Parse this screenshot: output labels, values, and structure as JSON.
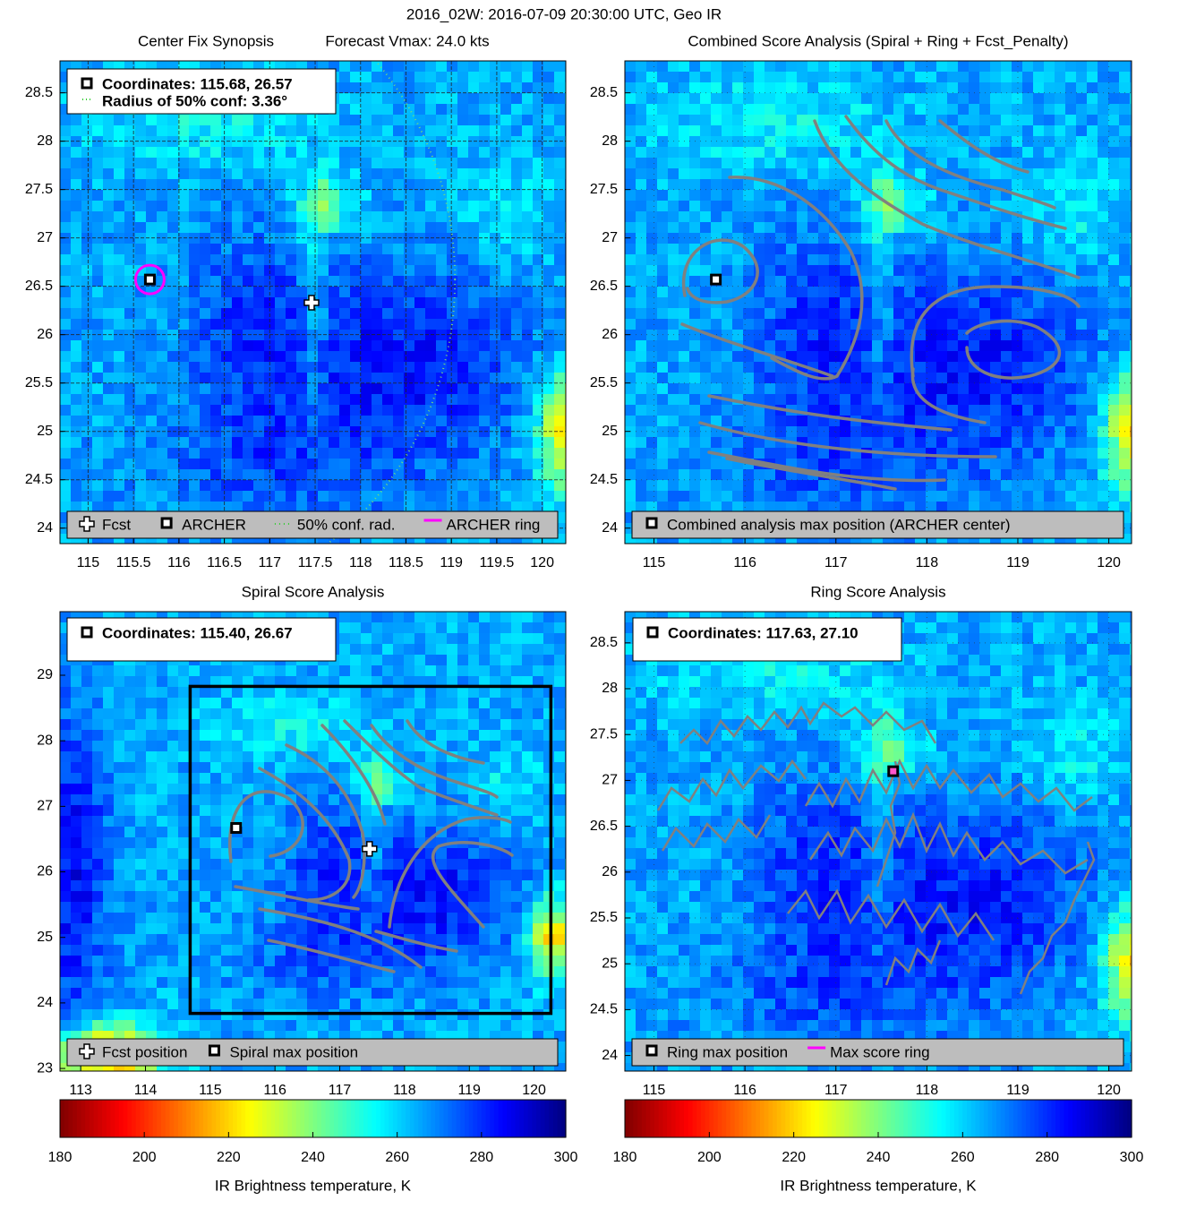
{
  "title": "2016_02W: 2016-07-09 20:30:00 UTC, Geo IR",
  "chart_data": [
    {
      "type": "scatter",
      "title": "Center Fix Synopsis",
      "subtitle": "Forecast Vmax: 24.0 kts",
      "xlim": [
        114.69,
        120.26
      ],
      "ylim": [
        23.84,
        28.83
      ],
      "xticks": [
        115,
        115.5,
        116,
        116.5,
        117,
        117.5,
        118,
        118.5,
        119,
        119.5,
        120
      ],
      "yticks": [
        24,
        24.5,
        25,
        25.5,
        26,
        26.5,
        27,
        27.5,
        28,
        28.5
      ],
      "grid": true,
      "info": [
        "Coordinates: 115.68, 26.57",
        "Radius of 50% conf: 3.36°"
      ],
      "points": [
        {
          "x": 115.68,
          "y": 26.57,
          "marker": "square-ring"
        },
        {
          "x": 117.46,
          "y": 26.33,
          "marker": "plus"
        }
      ],
      "conf_radius": 3.36,
      "legend": [
        {
          "label": "Fcst",
          "symbol": "plus"
        },
        {
          "label": "ARCHER",
          "symbol": "square"
        },
        {
          "label": "50% conf. rad.",
          "symbol": "dots"
        },
        {
          "label": "ARCHER ring",
          "symbol": "line"
        }
      ]
    },
    {
      "type": "scatter",
      "title": "Combined Score Analysis (Spiral + Ring + Fcst_Penalty)",
      "xlim": [
        114.68,
        120.25
      ],
      "ylim": [
        23.84,
        28.83
      ],
      "xticks": [
        115,
        116,
        117,
        118,
        119,
        120
      ],
      "yticks": [
        24,
        24.5,
        25,
        25.5,
        26,
        26.5,
        27,
        27.5,
        28,
        28.5
      ],
      "grid": true,
      "points": [
        {
          "x": 115.68,
          "y": 26.57,
          "marker": "square"
        }
      ],
      "legend": [
        {
          "label": "Combined analysis max position (ARCHER center)",
          "symbol": "square"
        }
      ]
    },
    {
      "type": "scatter",
      "title": "Spiral Score Analysis",
      "xlim": [
        112.68,
        120.49
      ],
      "ylim": [
        22.96,
        29.97
      ],
      "xticks": [
        113,
        114,
        115,
        116,
        117,
        118,
        119,
        120
      ],
      "yticks": [
        23,
        24,
        25,
        26,
        27,
        28,
        29
      ],
      "grid": false,
      "info": [
        "Coordinates: 115.40, 26.67"
      ],
      "points": [
        {
          "x": 115.4,
          "y": 26.67,
          "marker": "square"
        },
        {
          "x": 117.46,
          "y": 26.35,
          "marker": "plus"
        }
      ],
      "legend": [
        {
          "label": "Fcst position",
          "symbol": "plus"
        },
        {
          "label": "Spiral max position",
          "symbol": "square"
        }
      ]
    },
    {
      "type": "scatter",
      "title": "Ring Score Analysis",
      "xlim": [
        114.68,
        120.25
      ],
      "ylim": [
        23.83,
        28.84
      ],
      "xticks": [
        115,
        116,
        117,
        118,
        119,
        120
      ],
      "yticks": [
        24,
        24.5,
        25,
        25.5,
        26,
        26.5,
        27,
        27.5,
        28,
        28.5
      ],
      "grid": true,
      "info": [
        "Coordinates: 117.63, 27.10"
      ],
      "points": [
        {
          "x": 117.63,
          "y": 27.1,
          "marker": "square-pink"
        }
      ],
      "legend": [
        {
          "label": "Ring max position",
          "symbol": "square"
        },
        {
          "label": "Max score ring",
          "symbol": "line"
        }
      ]
    }
  ],
  "colorbars": [
    {
      "label": "IR Brightness temperature, K",
      "lim": [
        180,
        300
      ],
      "ticks": [
        180,
        200,
        220,
        240,
        260,
        280,
        300
      ]
    },
    {
      "label": "IR Brightness temperature, K",
      "lim": [
        180,
        300
      ],
      "ticks": [
        180,
        200,
        220,
        240,
        260,
        280,
        300
      ]
    }
  ]
}
